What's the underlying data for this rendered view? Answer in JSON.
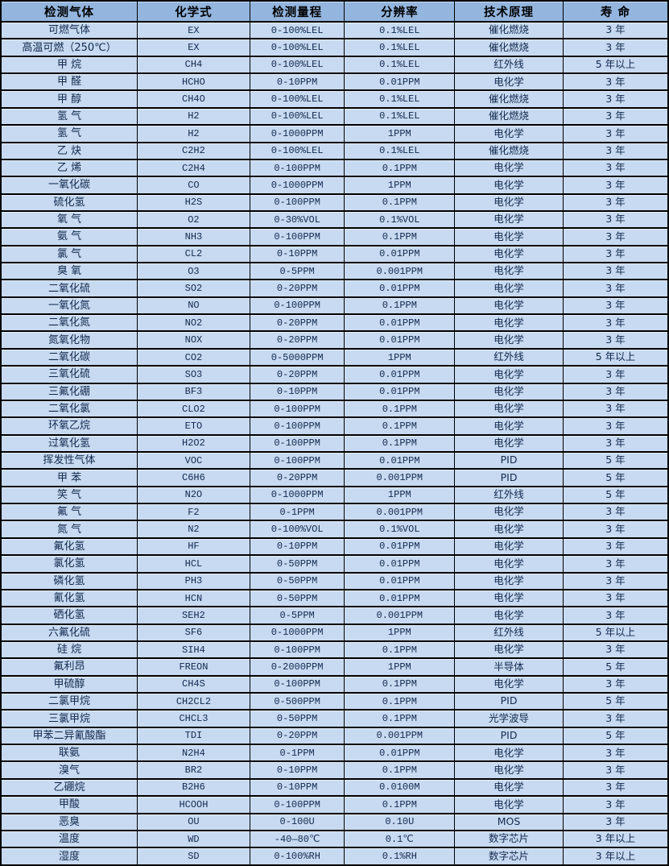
{
  "colors": {
    "header_bg": "#93b5de",
    "row_bg": "#c7daf1",
    "border": "#000000",
    "text": "#13294d",
    "header_text": "#000000"
  },
  "table": {
    "column_keys": [
      "gas",
      "formula",
      "range",
      "resolution",
      "principle",
      "lifespan"
    ],
    "columns": [
      "检测气体",
      "化学式",
      "检测量程",
      "分辨率",
      "技术原理",
      "寿 命"
    ],
    "rows": [
      [
        "可燃气体",
        "EX",
        "0-100%LEL",
        "0.1%LEL",
        "催化燃烧",
        "3 年"
      ],
      [
        "高温可燃（250℃）",
        "EX",
        "0-100%LEL",
        "0.1%LEL",
        "催化燃烧",
        "3 年"
      ],
      [
        "甲 烷",
        "CH4",
        "0-100%LEL",
        "0.1%LEL",
        "红外线",
        "5 年以上"
      ],
      [
        "甲 醛",
        "HCHO",
        "0-10PPM",
        "0.01PPM",
        "电化学",
        "3 年"
      ],
      [
        "甲 醇",
        "CH4O",
        "0-100%LEL",
        "0.1%LEL",
        "催化燃烧",
        "3 年"
      ],
      [
        "氢 气",
        "H2",
        "0-100%LEL",
        "0.1%LEL",
        "催化燃烧",
        "3 年"
      ],
      [
        "氢 气",
        "H2",
        "0-1000PPM",
        "1PPM",
        "电化学",
        "3 年"
      ],
      [
        "乙 炔",
        "C2H2",
        "0-100%LEL",
        "0.1%LEL",
        "催化燃烧",
        "3 年"
      ],
      [
        "乙 烯",
        "C2H4",
        "0-100PPM",
        "0.1PPM",
        "电化学",
        "3 年"
      ],
      [
        "一氧化碳",
        "CO",
        "0-1000PPM",
        "1PPM",
        "电化学",
        "3 年"
      ],
      [
        "硫化氢",
        "H2S",
        "0-100PPM",
        "0.1PPM",
        "电化学",
        "3 年"
      ],
      [
        "氧 气",
        "O2",
        "0-30%VOL",
        "0.1%VOL",
        "电化学",
        "3 年"
      ],
      [
        "氨 气",
        "NH3",
        "0-100PPM",
        "0.1PPM",
        "电化学",
        "3 年"
      ],
      [
        "氯 气",
        "CL2",
        "0-10PPM",
        "0.01PPM",
        "电化学",
        "3 年"
      ],
      [
        "臭 氧",
        "O3",
        "0-5PPM",
        "0.001PPM",
        "电化学",
        "3 年"
      ],
      [
        "二氧化硫",
        "SO2",
        "0-20PPM",
        "0.01PPM",
        "电化学",
        "3 年"
      ],
      [
        "一氧化氮",
        "NO",
        "0-100PPM",
        "0.1PPM",
        "电化学",
        "3 年"
      ],
      [
        "二氧化氮",
        "NO2",
        "0-20PPM",
        "0.01PPM",
        "电化学",
        "3 年"
      ],
      [
        "氮氧化物",
        "NOX",
        "0-20PPM",
        "0.01PPM",
        "电化学",
        "3 年"
      ],
      [
        "二氧化碳",
        "CO2",
        "0-5000PPM",
        "1PPM",
        "红外线",
        "5 年以上"
      ],
      [
        "三氧化硫",
        "SO3",
        "0-20PPM",
        "0.01PPM",
        "电化学",
        "3 年"
      ],
      [
        "三氟化硼",
        "BF3",
        "0-10PPM",
        "0.01PPM",
        "电化学",
        "3 年"
      ],
      [
        "二氧化氯",
        "CLO2",
        "0-100PPM",
        "0.1PPM",
        "电化学",
        "3 年"
      ],
      [
        "环氧乙烷",
        "ETO",
        "0-100PPM",
        "0.1PPM",
        "电化学",
        "3 年"
      ],
      [
        "过氧化氢",
        "H2O2",
        "0-100PPM",
        "0.1PPM",
        "电化学",
        "3 年"
      ],
      [
        "挥发性气体",
        "VOC",
        "0-100PPM",
        "0.01PPM",
        "PID",
        "5 年"
      ],
      [
        "甲 苯",
        "C6H6",
        "0-20PPM",
        "0.001PPM",
        "PID",
        "5 年"
      ],
      [
        "笑 气",
        "N2O",
        "0-1000PPM",
        "1PPM",
        "红外线",
        "5 年"
      ],
      [
        "氟 气",
        "F2",
        "0-1PPM",
        "0.001PPM",
        "电化学",
        "3 年"
      ],
      [
        "氮 气",
        "N2",
        "0-100%VOL",
        "0.1%VOL",
        "电化学",
        "3 年"
      ],
      [
        "氟化氢",
        "HF",
        "0-10PPM",
        "0.01PPM",
        "电化学",
        "3 年"
      ],
      [
        "氯化氢",
        "HCL",
        "0-50PPM",
        "0.01PPM",
        "电化学",
        "3 年"
      ],
      [
        "磷化氢",
        "PH3",
        "0-50PPM",
        "0.01PPM",
        "电化学",
        "3 年"
      ],
      [
        "氰化氢",
        "HCN",
        "0-50PPM",
        "0.01PPM",
        "电化学",
        "3 年"
      ],
      [
        "硒化氢",
        "SEH2",
        "0-5PPM",
        "0.001PPM",
        "电化学",
        "3 年"
      ],
      [
        "六氟化硫",
        "SF6",
        "0-1000PPM",
        "1PPM",
        "红外线",
        "5 年以上"
      ],
      [
        "硅 烷",
        "SIH4",
        "0-100PPM",
        "0.1PPM",
        "电化学",
        "3 年"
      ],
      [
        "氟利昂",
        "FREON",
        "0-2000PPM",
        "1PPM",
        "半导体",
        "5 年"
      ],
      [
        "甲硫醇",
        "CH4S",
        "0-100PPM",
        "0.1PPM",
        "电化学",
        "3 年"
      ],
      [
        "二氯甲烷",
        "CH2CL2",
        "0-500PPM",
        "0.1PPM",
        "PID",
        "5 年"
      ],
      [
        "三氯甲烷",
        "CHCL3",
        "0-50PPM",
        "0.1PPM",
        "光学波导",
        "3 年"
      ],
      [
        "甲苯二异氰酸酯",
        "TDI",
        "0-20PPM",
        "0.001PPM",
        "PID",
        "5 年"
      ],
      [
        "联氨",
        "N2H4",
        "0-1PPM",
        "0.01PPM",
        "电化学",
        "3 年"
      ],
      [
        "溴气",
        "BR2",
        "0-10PPM",
        "0.1PPM",
        "电化学",
        "3 年"
      ],
      [
        "乙硼烷",
        "B2H6",
        "0-10PPM",
        "0.0100M",
        "电化学",
        "3 年"
      ],
      [
        "甲酸",
        "HCOOH",
        "0-100PPM",
        "0.1PPM",
        "电化学",
        "3 年"
      ],
      [
        "恶臭",
        "OU",
        "0-100U",
        "0.10U",
        "MOS",
        "3 年"
      ],
      [
        "温度",
        "WD",
        "-40—80℃",
        "0.1℃",
        "数字芯片",
        "3 年以上"
      ],
      [
        "湿度",
        "SD",
        "0-100%RH",
        "0.1%RH",
        "数字芯片",
        "3 年以上"
      ]
    ]
  }
}
